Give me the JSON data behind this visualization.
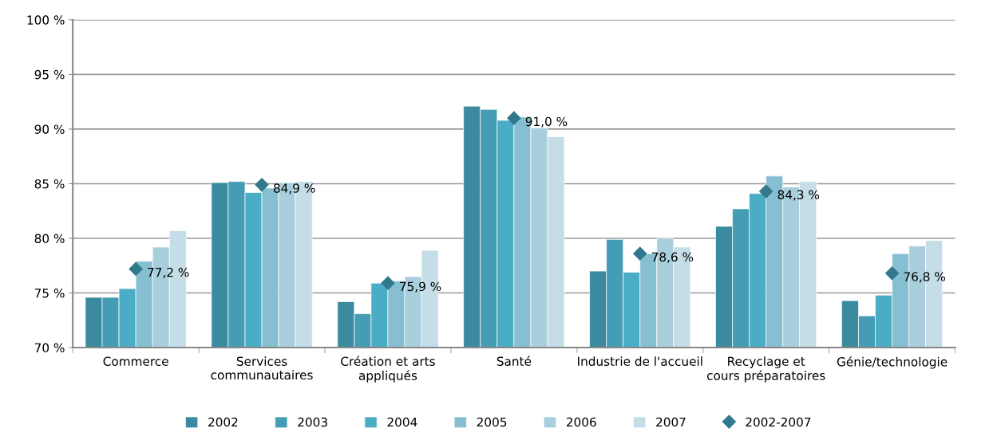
{
  "chart_data": {
    "type": "bar",
    "categories": [
      "Commerce",
      "Services\ncommunautaires",
      "Création et arts\nappliqués",
      "Santé",
      "Industrie de l'accueil",
      "Recyclage et\ncours préparatoires",
      "Génie/technologie"
    ],
    "series": [
      {
        "name": "2002",
        "color": "#3b8aa0",
        "values": [
          74.6,
          85.1,
          74.2,
          92.1,
          77.0,
          81.1,
          74.3
        ]
      },
      {
        "name": "2003",
        "color": "#459db5",
        "values": [
          74.6,
          85.2,
          73.1,
          91.8,
          79.9,
          82.7,
          72.9
        ]
      },
      {
        "name": "2004",
        "color": "#4bacc6",
        "values": [
          75.4,
          84.2,
          75.9,
          90.8,
          76.9,
          84.1,
          74.8
        ]
      },
      {
        "name": "2005",
        "color": "#86bfd2",
        "values": [
          77.9,
          84.6,
          76.1,
          91.1,
          78.6,
          85.7,
          78.6
        ]
      },
      {
        "name": "2006",
        "color": "#a9cfdd",
        "values": [
          79.2,
          85.1,
          76.5,
          90.1,
          80.0,
          84.7,
          79.3
        ]
      },
      {
        "name": "2007",
        "color": "#c4dde6",
        "values": [
          80.7,
          85.2,
          78.9,
          89.3,
          79.2,
          85.2,
          79.8
        ]
      },
      {
        "name": "2002-2007",
        "type": "scatter",
        "marker": "diamond",
        "color": "#31798c",
        "values": [
          77.2,
          84.9,
          75.9,
          91.0,
          78.6,
          84.3,
          76.8
        ],
        "value_labels": [
          "77,2 %",
          "84,9 %",
          "75,9 %",
          "91,0 %",
          "78,6 %",
          "84,3 %",
          "76,8 %"
        ]
      }
    ],
    "ylim": [
      70,
      100
    ],
    "yticks": [
      {
        "value": 70,
        "label": "70 %"
      },
      {
        "value": 75,
        "label": "75 %"
      },
      {
        "value": 80,
        "label": "80 %"
      },
      {
        "value": 85,
        "label": "85 %"
      },
      {
        "value": 90,
        "label": "90 %"
      },
      {
        "value": 95,
        "label": "95 %"
      },
      {
        "value": 100,
        "label": "100 %"
      }
    ],
    "grid": "y",
    "legend": "bottom"
  }
}
